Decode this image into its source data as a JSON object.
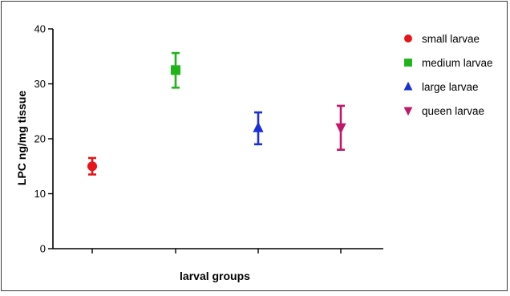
{
  "chart_data": {
    "type": "scatter",
    "title": "",
    "xlabel": "larval groups",
    "ylabel": "LPC ng/mg tissue",
    "ylim": [
      0,
      40
    ],
    "yticks": [
      "0",
      "10",
      "20",
      "30",
      "40"
    ],
    "grid": false,
    "legend_position": "right",
    "series": [
      {
        "name": "small larvae",
        "marker": "circle",
        "color": "#e8141a",
        "x": 1,
        "y": 15.0,
        "err_low": 13.5,
        "err_high": 16.5
      },
      {
        "name": "medium larvae",
        "marker": "square",
        "color": "#1fb51a",
        "x": 2,
        "y": 32.5,
        "err_low": 29.3,
        "err_high": 35.6
      },
      {
        "name": "large larvae",
        "marker": "triangle-up",
        "color": "#1b2fd6",
        "x": 3,
        "y": 22.0,
        "err_low": 19.0,
        "err_high": 24.8
      },
      {
        "name": "queen larvae",
        "marker": "triangle-down",
        "color": "#c0186a",
        "x": 4,
        "y": 22.0,
        "err_low": 18.0,
        "err_high": 26.0
      }
    ]
  }
}
